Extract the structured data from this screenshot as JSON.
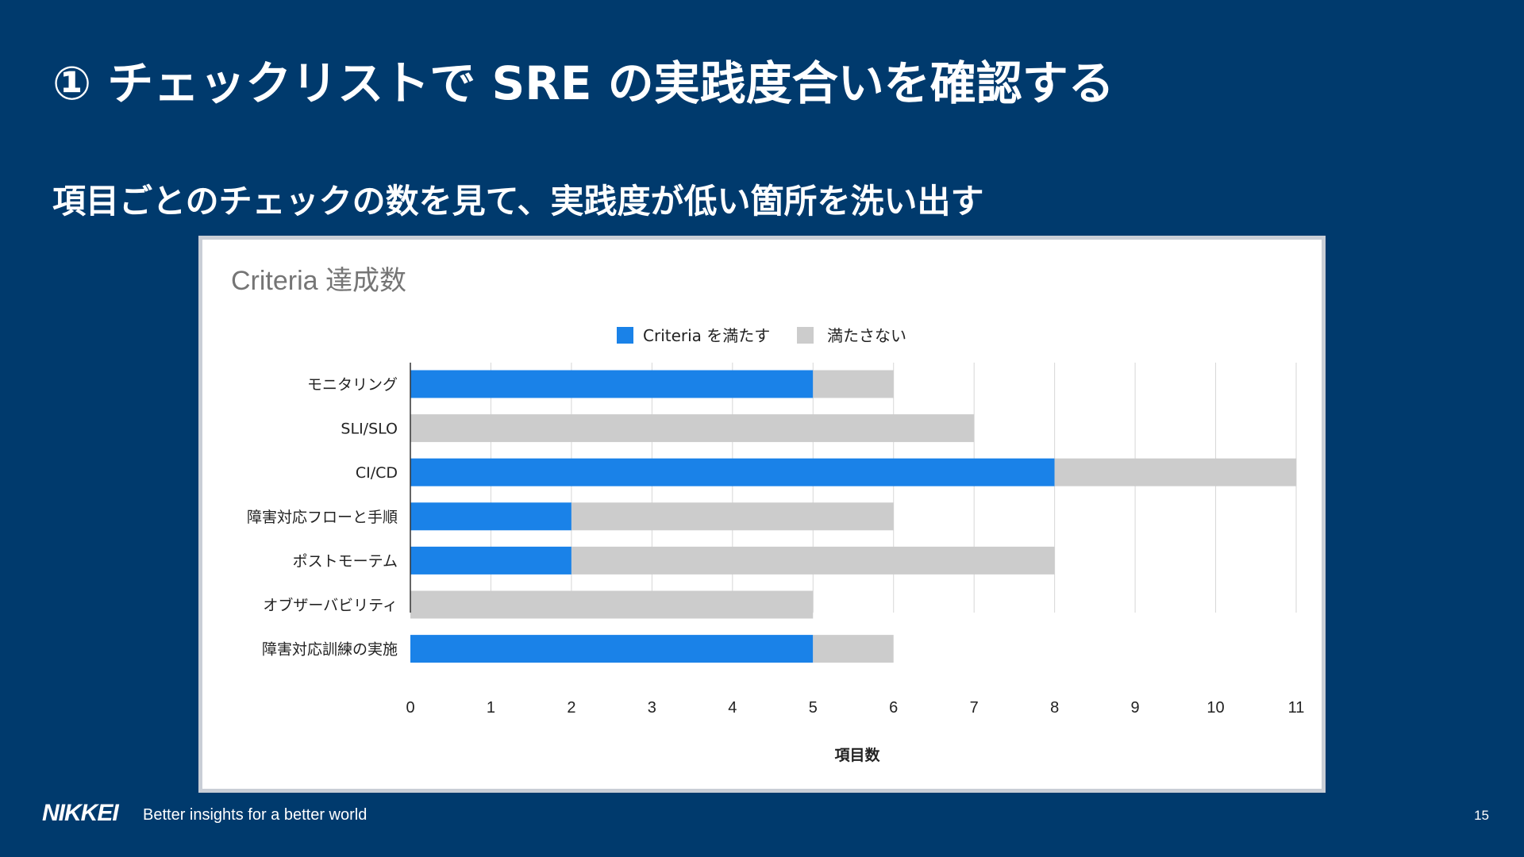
{
  "slide": {
    "title": "① チェックリストで SRE の実践度合いを確認する",
    "subtitle": "項目ごとのチェックの数を見て、実践度が低い箇所を洗い出す",
    "page_number": "15"
  },
  "footer": {
    "logo": "NIKKEI",
    "tagline": "Better insights for a better world"
  },
  "colors": {
    "background": "#003a6d",
    "met": "#1a82e8",
    "unmet": "#cccccc"
  },
  "chart_data": {
    "type": "bar",
    "orientation": "horizontal",
    "stacked": true,
    "title": "Criteria 達成数",
    "xlabel": "項目数",
    "ylabel": "",
    "xlim": [
      0,
      11
    ],
    "xticks": [
      "0",
      "1",
      "2",
      "3",
      "4",
      "5",
      "6",
      "7",
      "8",
      "9",
      "10",
      "11"
    ],
    "grid": true,
    "legend_position": "top",
    "categories": [
      "モニタリング",
      "SLI/SLO",
      "CI/CD",
      "障害対応フローと手順",
      "ポストモーテム",
      "オブザーバビリティ",
      "障害対応訓練の実施"
    ],
    "series": [
      {
        "name": "Criteria を満たす",
        "color": "#1a82e8",
        "values": [
          5,
          0,
          8,
          2,
          2,
          0,
          5
        ]
      },
      {
        "name": "満たさない",
        "color": "#cccccc",
        "values": [
          1,
          7,
          3,
          4,
          6,
          5,
          1
        ]
      }
    ]
  }
}
